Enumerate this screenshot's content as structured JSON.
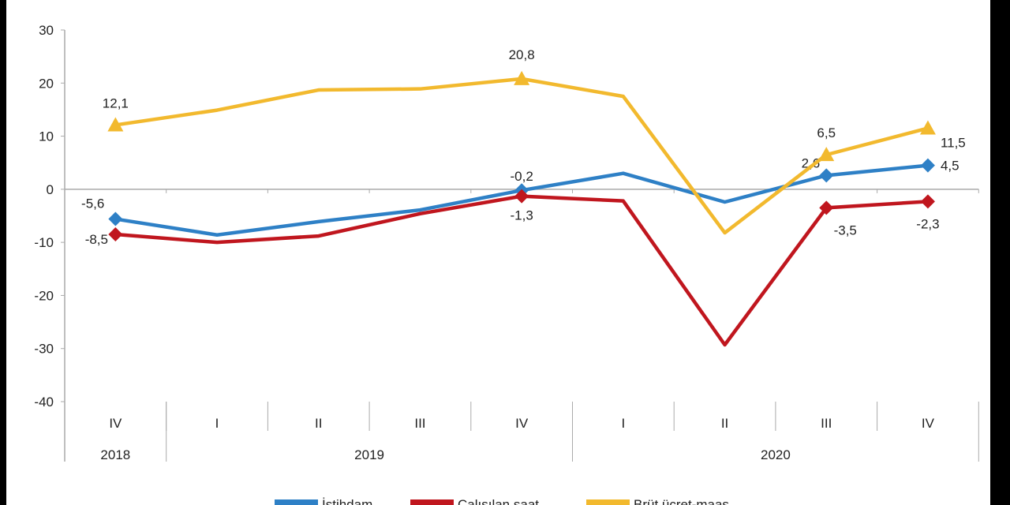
{
  "chart_data": {
    "type": "line",
    "categories": [
      "IV",
      "I",
      "II",
      "III",
      "IV",
      "I",
      "II",
      "III",
      "IV"
    ],
    "year_groups": [
      {
        "label": "2018",
        "span": 1
      },
      {
        "label": "2019",
        "span": 4
      },
      {
        "label": "2020",
        "span": 4
      }
    ],
    "ylim": [
      -40,
      30
    ],
    "yticks": [
      30,
      20,
      10,
      0,
      -10,
      -20,
      -30,
      -40
    ],
    "grid": false,
    "legend_position": "bottom",
    "series": [
      {
        "name": "İstihdam",
        "color": "#2e80c6",
        "marker": "diamond",
        "values": [
          -5.6,
          -8.6,
          -6.1,
          -3.9,
          -0.2,
          3.0,
          -2.4,
          2.6,
          4.5
        ],
        "markers": [
          0,
          4,
          7,
          8
        ],
        "labels": [
          {
            "i": 0,
            "text": "-5,6"
          },
          {
            "i": 4,
            "text": "-0,2"
          },
          {
            "i": 7,
            "text": "2,6"
          },
          {
            "i": 8,
            "text": "4,5"
          }
        ]
      },
      {
        "name": "Çalışılan saat",
        "color": "#c0161e",
        "marker": "diamond",
        "values": [
          -8.5,
          -10.0,
          -8.8,
          -4.6,
          -1.3,
          -2.2,
          -29.3,
          -3.5,
          -2.3
        ],
        "markers": [
          0,
          4,
          7,
          8
        ],
        "labels": [
          {
            "i": 0,
            "text": "-8,5"
          },
          {
            "i": 4,
            "text": "-1,3"
          },
          {
            "i": 7,
            "text": "-3,5"
          },
          {
            "i": 8,
            "text": "-2,3"
          }
        ]
      },
      {
        "name": "Brüt ücret-maaş",
        "color": "#f2b92e",
        "marker": "triangle",
        "values": [
          12.1,
          14.9,
          18.7,
          18.9,
          20.8,
          17.5,
          -8.2,
          6.5,
          11.5
        ],
        "markers": [
          0,
          4,
          7,
          8
        ],
        "labels": [
          {
            "i": 0,
            "text": "12,1"
          },
          {
            "i": 4,
            "text": "20,8"
          },
          {
            "i": 7,
            "text": "6,5"
          },
          {
            "i": 8,
            "text": "11,5"
          }
        ]
      }
    ]
  }
}
